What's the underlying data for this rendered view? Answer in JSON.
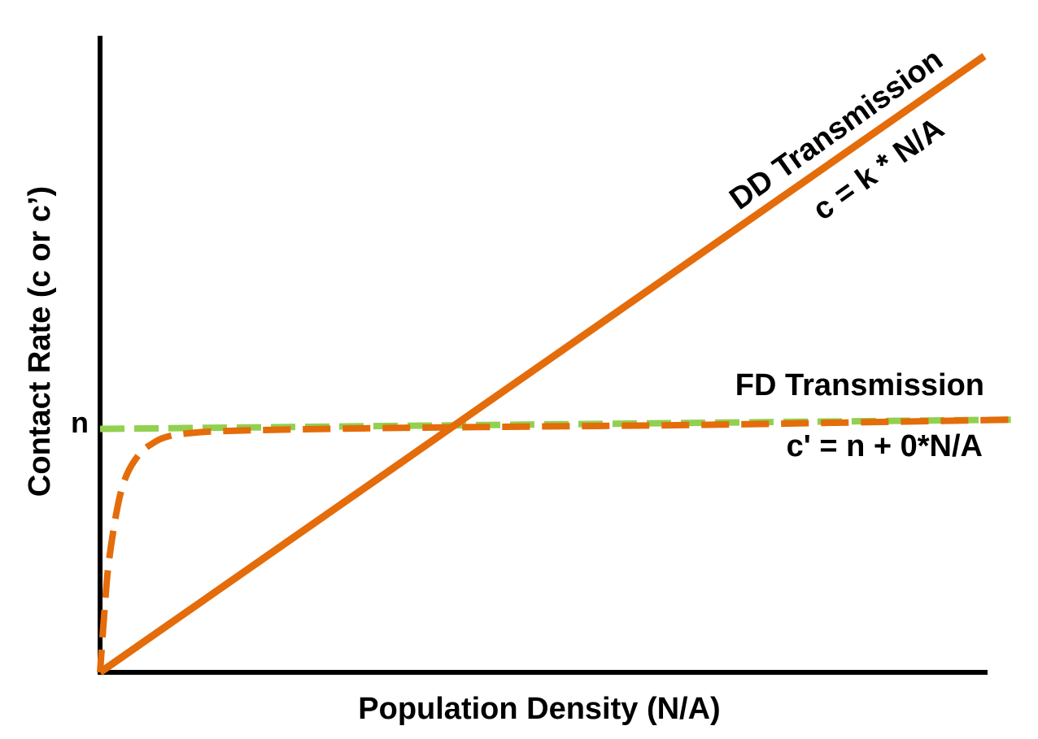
{
  "chart_data": {
    "type": "line",
    "xlabel": "Population Density (N/A)",
    "ylabel": "Contact Rate (c or c’)",
    "y_tick_labels": [
      "n"
    ],
    "series": [
      {
        "kind": "dd",
        "style": "solid",
        "color": "#E46C0A",
        "x": [
          0,
          1
        ],
        "y": [
          0,
          1
        ]
      },
      {
        "kind": "fd-ref",
        "style": "dashed",
        "color": "#92D050",
        "x": [
          0,
          1.03
        ],
        "y": [
          0.395,
          0.41
        ]
      },
      {
        "kind": "fd-curve",
        "style": "dashed",
        "color": "#E46C0A",
        "x": [
          0,
          0.005,
          0.01,
          0.02,
          0.03,
          0.045,
          0.06,
          0.075,
          0.1,
          0.15,
          0.3,
          0.5,
          0.7,
          1.03
        ],
        "y": [
          0,
          0.1,
          0.18,
          0.27,
          0.32,
          0.355,
          0.372,
          0.382,
          0.388,
          0.392,
          0.396,
          0.399,
          0.402,
          0.41
        ]
      }
    ],
    "annotations": {
      "dd_title": "DD Transmission",
      "dd_eq": "c = k * N/A",
      "fd_title": "FD Transmission",
      "fd_eq": "c' = n + 0*N/A"
    },
    "grid": false,
    "legend": "none"
  }
}
